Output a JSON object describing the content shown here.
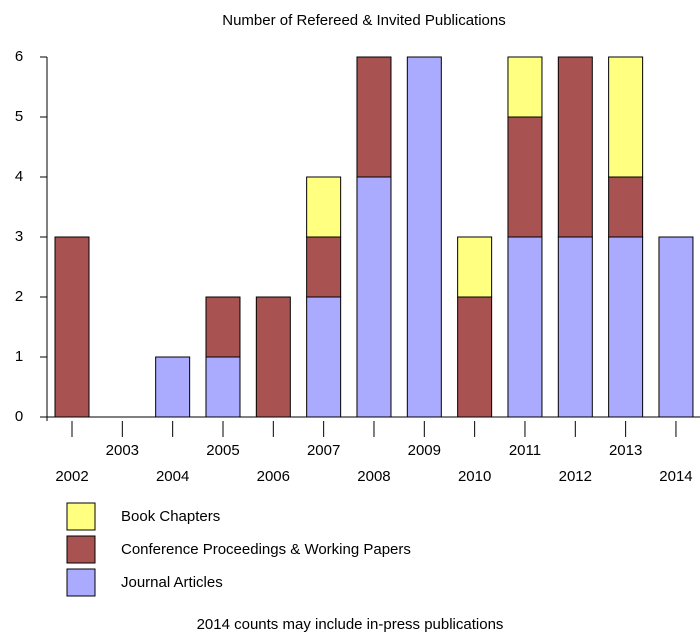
{
  "chart_data": {
    "type": "stacked_bar",
    "title": "Number of Refereed & Invited Publications",
    "categories": [
      "2002",
      "2003",
      "2004",
      "2005",
      "2006",
      "2007",
      "2008",
      "2009",
      "2010",
      "2011",
      "2012",
      "2013",
      "2014"
    ],
    "series": [
      {
        "name": "Book Chapters",
        "color": "#ffff80",
        "values": [
          0,
          0,
          0,
          0,
          0,
          1,
          0,
          0,
          1,
          1,
          0,
          2,
          0
        ]
      },
      {
        "name": "Conference Proceedings & Working Papers",
        "color": "#a85252",
        "values": [
          3,
          0,
          0,
          1,
          2,
          1,
          2,
          0,
          2,
          2,
          3,
          1,
          0
        ]
      },
      {
        "name": "Journal Articles",
        "color": "#aaaaff",
        "values": [
          0,
          0,
          1,
          1,
          0,
          2,
          4,
          6,
          0,
          3,
          3,
          3,
          3
        ]
      }
    ],
    "ylim": [
      0,
      6
    ],
    "yticks": [
      0,
      1,
      2,
      3,
      4,
      5,
      6
    ],
    "note": "2014 counts may include in-press publications"
  }
}
